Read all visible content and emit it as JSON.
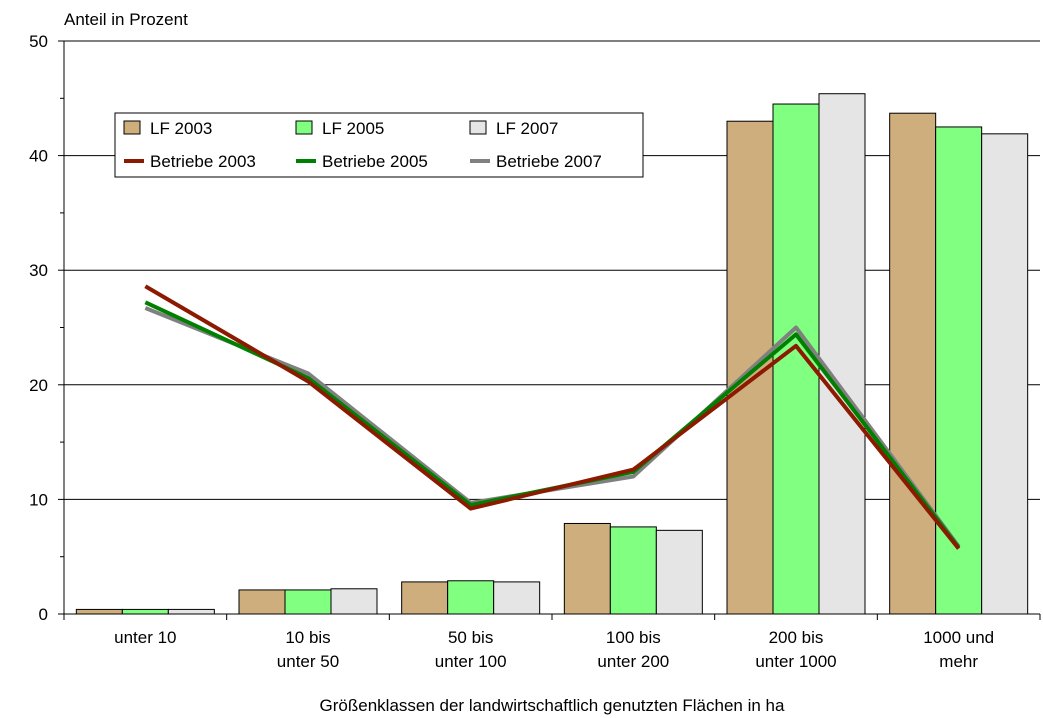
{
  "chart_data": {
    "type": "bar",
    "ylabel": "Anteil in Prozent",
    "xlabel": "Größenklassen der landwirtschaftlich genutzten Flächen in ha",
    "ylim": [
      0,
      50
    ],
    "yticks": [
      0,
      10,
      20,
      30,
      40,
      50
    ],
    "grid": true,
    "legend_position": "top-left",
    "categories": [
      [
        "unter 10"
      ],
      [
        "10 bis",
        "unter 50"
      ],
      [
        "50 bis",
        "unter 100"
      ],
      [
        "100 bis",
        "unter 200"
      ],
      [
        "200 bis",
        "unter 1000"
      ],
      [
        "1000 und",
        "mehr"
      ]
    ],
    "bar_series": [
      {
        "name": "LF 2003",
        "color": "#cfae7e",
        "values": [
          0.4,
          2.1,
          2.8,
          7.9,
          43.0,
          43.7
        ]
      },
      {
        "name": "LF 2005",
        "color": "#80ff80",
        "values": [
          0.4,
          2.1,
          2.9,
          7.6,
          44.5,
          42.5
        ]
      },
      {
        "name": "LF 2007",
        "color": "#e5e5e5",
        "values": [
          0.4,
          2.2,
          2.8,
          7.3,
          45.4,
          41.9
        ]
      }
    ],
    "line_series": [
      {
        "name": "Betriebe 2003",
        "color": "#8b1a00",
        "values": [
          28.6,
          20.3,
          9.2,
          12.6,
          23.4,
          5.7
        ]
      },
      {
        "name": "Betriebe 2005",
        "color": "#008000",
        "values": [
          27.2,
          20.6,
          9.5,
          12.4,
          24.4,
          5.8
        ]
      },
      {
        "name": "Betriebe 2007",
        "color": "#808080",
        "values": [
          26.7,
          21.0,
          9.7,
          12.0,
          25.0,
          5.9
        ]
      }
    ]
  }
}
